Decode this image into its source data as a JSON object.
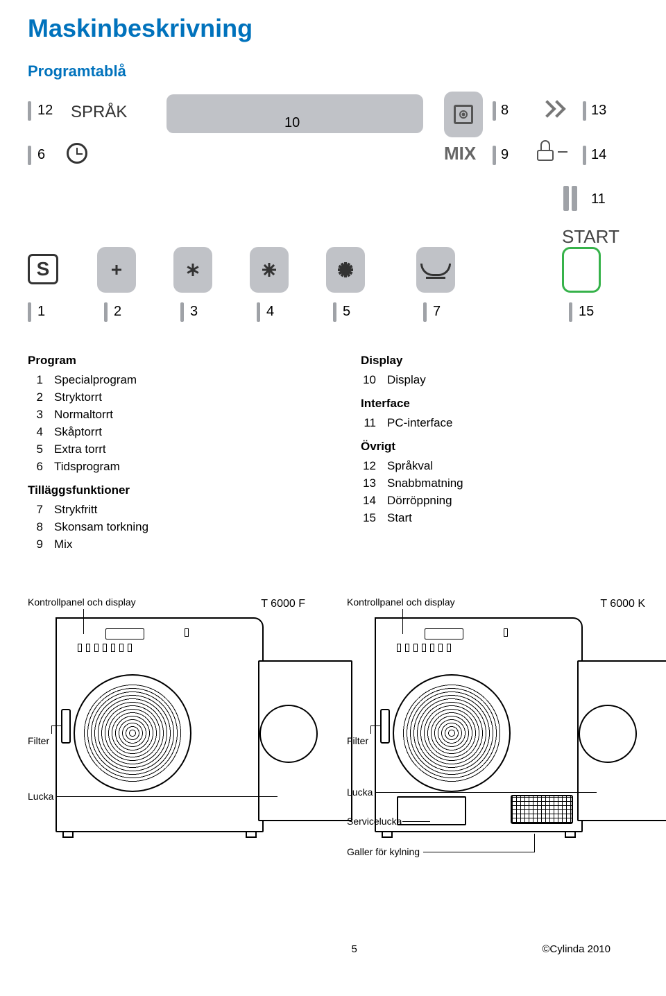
{
  "colors": {
    "heading": "#0072bc",
    "panel_grey": "#c0c2c7",
    "tick_grey": "#9fa2a7",
    "start_outline": "#36b24a",
    "text": "#000000",
    "bg": "#ffffff"
  },
  "headings": {
    "main": "Maskinbeskrivning",
    "sub": "Programtablå"
  },
  "panel": {
    "sprak_label": "SPRÅK",
    "mix_label": "MIX",
    "start_label": "START",
    "labels": {
      "n1": "1",
      "n2": "2",
      "n3": "3",
      "n4": "4",
      "n5": "5",
      "n6": "6",
      "n7": "7",
      "n8": "8",
      "n9": "9",
      "n10": "10",
      "n11": "11",
      "n12": "12",
      "n13": "13",
      "n14": "14",
      "n15": "15"
    },
    "s_letter": "S"
  },
  "lists": {
    "program_head": "Program",
    "tillaggs_head": "Tilläggsfunktioner",
    "display_head": "Display",
    "interface_head": "Interface",
    "ovrigt_head": "Övrigt",
    "program": [
      {
        "n": "1",
        "t": "Specialprogram"
      },
      {
        "n": "2",
        "t": "Stryktorrt"
      },
      {
        "n": "3",
        "t": "Normaltorrt"
      },
      {
        "n": "4",
        "t": "Skåptorrt"
      },
      {
        "n": "5",
        "t": "Extra torrt"
      },
      {
        "n": "6",
        "t": "Tidsprogram"
      }
    ],
    "tillaggs": [
      {
        "n": "7",
        "t": "Strykfritt"
      },
      {
        "n": "8",
        "t": "Skonsam torkning"
      },
      {
        "n": "9",
        "t": "Mix"
      }
    ],
    "display": [
      {
        "n": "10",
        "t": "Display"
      }
    ],
    "interface": [
      {
        "n": "11",
        "t": "PC-interface"
      }
    ],
    "ovrigt": [
      {
        "n": "12",
        "t": "Språkval"
      },
      {
        "n": "13",
        "t": "Snabbmatning"
      },
      {
        "n": "14",
        "t": "Dörröppning"
      },
      {
        "n": "15",
        "t": "Start"
      }
    ]
  },
  "machines": {
    "left": {
      "kontroll": "Kontrollpanel och display",
      "model": "T 6000 F",
      "filter": "Filter",
      "lucka": "Lucka"
    },
    "right": {
      "kontroll": "Kontrollpanel och display",
      "model": "T 6000 K",
      "filter": "Filter",
      "lucka": "Lucka",
      "service": "Servicelucka",
      "galler": "Galler för kylning"
    }
  },
  "footer": {
    "page": "5",
    "copyright": "©Cylinda 2010"
  }
}
